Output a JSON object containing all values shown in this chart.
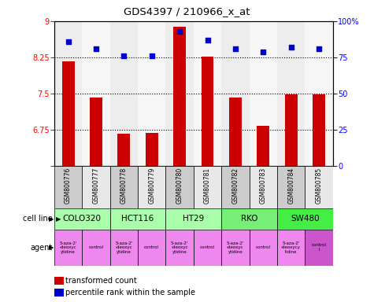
{
  "title": "GDS4397 / 210966_x_at",
  "samples": [
    "GSM800776",
    "GSM800777",
    "GSM800778",
    "GSM800779",
    "GSM800780",
    "GSM800781",
    "GSM800782",
    "GSM800783",
    "GSM800784",
    "GSM800785"
  ],
  "bar_values": [
    8.17,
    7.42,
    6.67,
    6.68,
    8.88,
    8.27,
    7.42,
    6.84,
    7.48,
    7.48
  ],
  "scatter_values": [
    86,
    81,
    76,
    76,
    93,
    87,
    81,
    79,
    82,
    81
  ],
  "ylim_left": [
    6,
    9
  ],
  "ylim_right": [
    0,
    100
  ],
  "yticks_left": [
    6,
    6.75,
    7.5,
    8.25,
    9
  ],
  "yticks_right": [
    0,
    25,
    50,
    75,
    100
  ],
  "bar_color": "#cc0000",
  "scatter_color": "#0000cc",
  "cell_lines": [
    {
      "label": "COLO320",
      "start": 0,
      "end": 2,
      "color": "#aaffaa"
    },
    {
      "label": "HCT116",
      "start": 2,
      "end": 4,
      "color": "#aaffaa"
    },
    {
      "label": "HT29",
      "start": 4,
      "end": 6,
      "color": "#aaffaa"
    },
    {
      "label": "RKO",
      "start": 6,
      "end": 8,
      "color": "#77ee77"
    },
    {
      "label": "SW480",
      "start": 8,
      "end": 10,
      "color": "#44ee44"
    }
  ],
  "agents": [
    {
      "label": "5-aza-2'\n-deoxyc\nytidine",
      "color": "#ee88ee"
    },
    {
      "label": "control",
      "color": "#ee88ee"
    },
    {
      "label": "5-aza-2'\n-deoxyc\nytidine",
      "color": "#ee88ee"
    },
    {
      "label": "control",
      "color": "#ee88ee"
    },
    {
      "label": "5-aza-2'\n-deoxyc\nytidine",
      "color": "#ee88ee"
    },
    {
      "label": "control",
      "color": "#ee88ee"
    },
    {
      "label": "5-aza-2'\n-deoxyc\nytidine",
      "color": "#ee88ee"
    },
    {
      "label": "control",
      "color": "#ee88ee"
    },
    {
      "label": "5-aza-2'\n-deoxycy\ntidine",
      "color": "#ee88ee"
    },
    {
      "label": "control\nl",
      "color": "#cc55cc"
    }
  ],
  "sample_bg_odd": "#cccccc",
  "sample_bg_even": "#e8e8e8",
  "legend_bar_label": "transformed count",
  "legend_scatter_label": "percentile rank within the sample",
  "cell_line_label": "cell line",
  "agent_label": "agent"
}
